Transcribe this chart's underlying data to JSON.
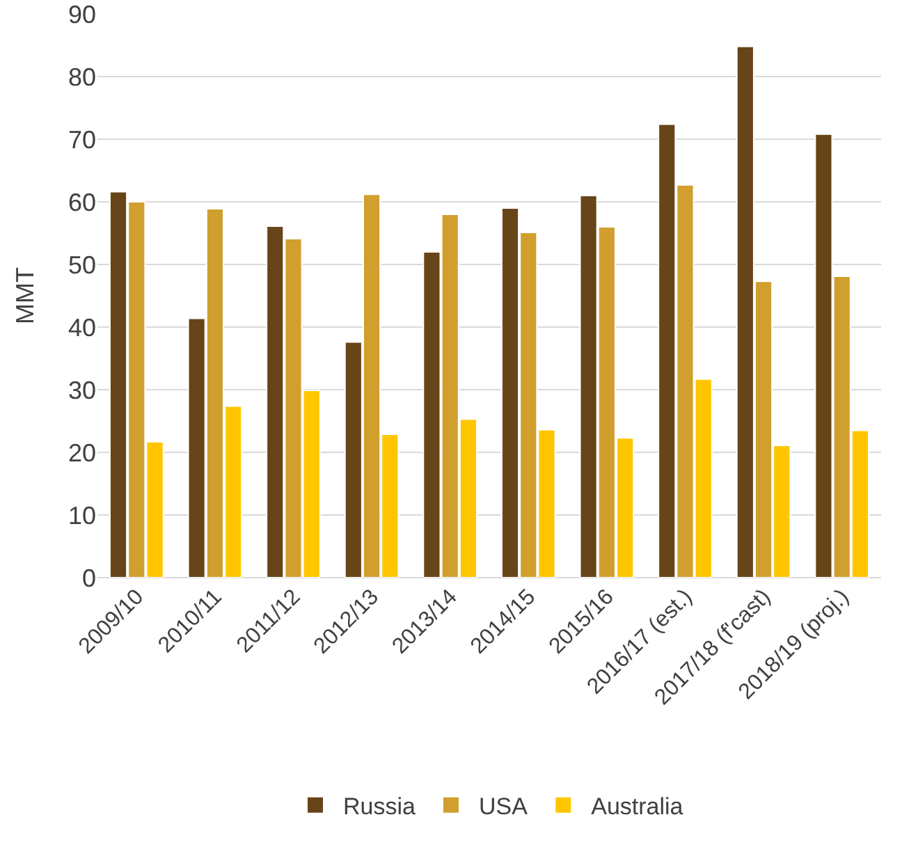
{
  "chart_data": {
    "type": "bar",
    "ylabel": "MMT",
    "categories": [
      "2009/10",
      "2010/11",
      "2011/12",
      "2012/13",
      "2013/14",
      "2014/15",
      "2015/16",
      "2016/17 (est.)",
      "2017/18 (f'cast)",
      "2018/19 (proj.)"
    ],
    "series": [
      {
        "name": "Russia",
        "color": "#674519",
        "values": [
          61.6,
          41.4,
          56.1,
          37.6,
          52.0,
          59.0,
          61.0,
          72.4,
          84.8,
          70.8
        ]
      },
      {
        "name": "USA",
        "color": "#d09f2e",
        "values": [
          60.0,
          58.9,
          54.1,
          61.2,
          58.0,
          55.1,
          56.0,
          62.7,
          47.3,
          48.1
        ]
      },
      {
        "name": "Australia",
        "color": "#ffc600",
        "values": [
          21.7,
          27.4,
          29.9,
          22.9,
          25.3,
          23.6,
          22.3,
          31.7,
          21.1,
          23.5
        ]
      }
    ],
    "ylim": [
      0,
      90
    ],
    "yticks": [
      0,
      10,
      20,
      30,
      40,
      50,
      60,
      70,
      80,
      90
    ],
    "grid": "y",
    "legend": "bottom"
  }
}
